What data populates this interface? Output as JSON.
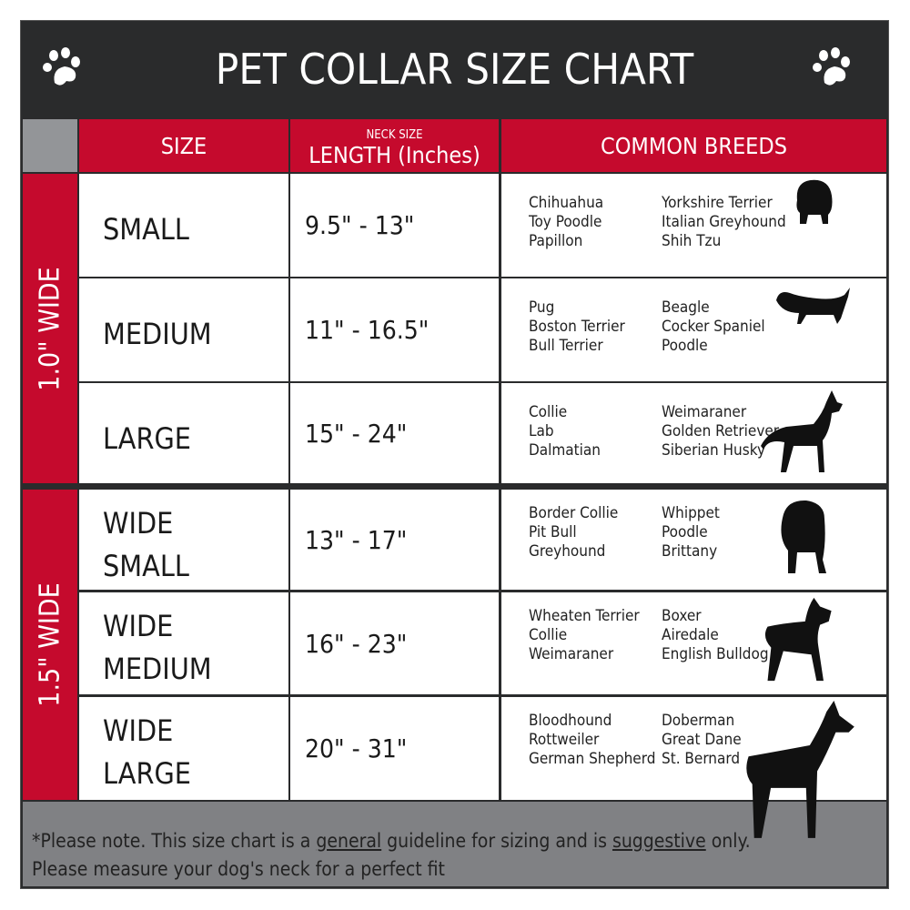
{
  "title": "PET COLLAR SIZE CHART",
  "icons": {
    "left": "paw-icon",
    "right": "paw-icon"
  },
  "colors": {
    "header_bg": "#2a2b2c",
    "accent_red": "#c50a2d",
    "footer_bg": "#808184"
  },
  "headers": {
    "size": "SIZE",
    "length_small": "NECK SIZE",
    "length": "LENGTH (Inches)",
    "breeds": "COMMON BREEDS"
  },
  "groups": [
    {
      "label": "1.0\" WIDE"
    },
    {
      "label": "1.5\" WIDE"
    }
  ],
  "rows": [
    {
      "size": [
        "SMALL"
      ],
      "length": "9.5\" - 13\"",
      "breeds_a": [
        "Chihuahua",
        "Toy Poodle",
        "Papillon"
      ],
      "breeds_b": [
        "Yorkshire Terrier",
        "Italian Greyhound",
        "Shih Tzu"
      ],
      "icon": "small-dog-silhouette-icon"
    },
    {
      "size": [
        "MEDIUM"
      ],
      "length": "11\" - 16.5\"",
      "breeds_a": [
        "Pug",
        "Boston Terrier",
        "Bull Terrier"
      ],
      "breeds_b": [
        "Beagle",
        "Cocker Spaniel",
        "Poodle"
      ],
      "icon": "dachshund-silhouette-icon"
    },
    {
      "size": [
        "LARGE"
      ],
      "length": "15\" - 24\"",
      "breeds_a": [
        "Collie",
        "Lab",
        "Dalmatian"
      ],
      "breeds_b": [
        "Weimaraner",
        "Golden Retriever",
        "Siberian Husky"
      ],
      "icon": "shepherd-silhouette-icon"
    },
    {
      "size": [
        "WIDE",
        "SMALL"
      ],
      "length": "13\" - 17\"",
      "breeds_a": [
        "Border Collie",
        "Pit Bull",
        "Greyhound"
      ],
      "breeds_b": [
        "Whippet",
        "Poodle",
        "Brittany"
      ],
      "icon": "bulldog-silhouette-icon"
    },
    {
      "size": [
        "WIDE",
        "MEDIUM"
      ],
      "length": "16\" - 23\"",
      "breeds_a": [
        "Wheaten Terrier",
        "Collie",
        "Weimaraner"
      ],
      "breeds_b": [
        "Boxer",
        "Airedale",
        "English Bulldog"
      ],
      "icon": "pitbull-silhouette-icon"
    },
    {
      "size": [
        "WIDE",
        "LARGE"
      ],
      "length": "20\" - 31\"",
      "breeds_a": [
        "Bloodhound",
        "Rottweiler",
        "German Shepherd"
      ],
      "breeds_b": [
        "Doberman",
        "Great Dane",
        "St. Bernard"
      ],
      "icon": "doberman-silhouette-icon"
    }
  ],
  "footer": {
    "p1": "*Please note. This size chart is a ",
    "u1": "general",
    "p2": " guideline for sizing and is ",
    "u2": "suggestive",
    "p3": " only.",
    "line2": "Please measure your dog's neck for a perfect fit"
  }
}
